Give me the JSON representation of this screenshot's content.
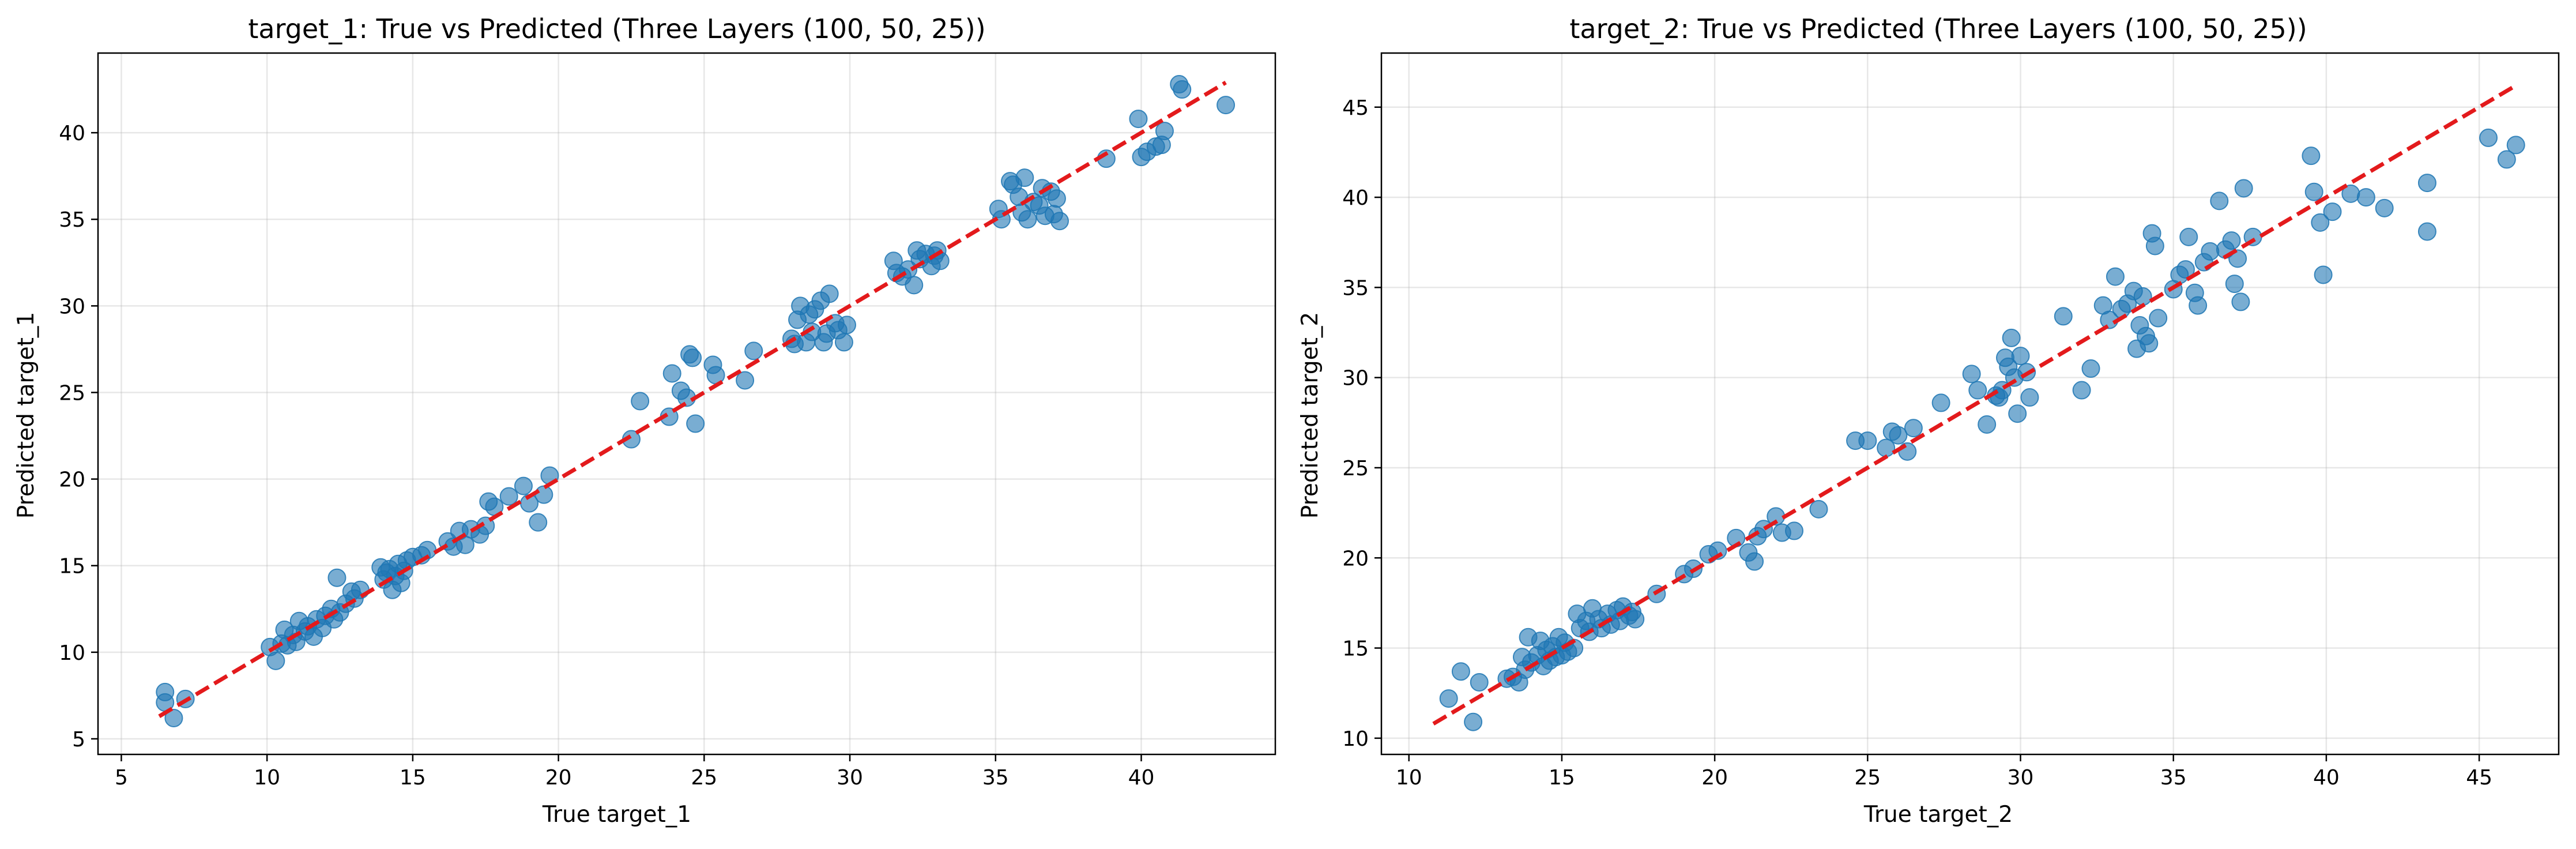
{
  "chart_data": [
    {
      "type": "scatter",
      "title": "target_1: True vs Predicted (Three Layers (100, 50, 25))",
      "xlabel": "True target_1",
      "ylabel": "Predicted target_1",
      "xlim": [
        4.2,
        44.6
      ],
      "ylim": [
        4.1,
        44.6
      ],
      "xticks": [
        5,
        10,
        15,
        20,
        25,
        30,
        35,
        40
      ],
      "yticks": [
        5,
        10,
        15,
        20,
        25,
        30,
        35,
        40
      ],
      "grid": true,
      "point_color": "#1f77b4",
      "reference_line": {
        "from": [
          6.3,
          6.3
        ],
        "to": [
          42.9,
          42.9
        ],
        "color": "#e31a1c",
        "style": "dashed"
      },
      "points": [
        [
          6.5,
          7.7
        ],
        [
          6.5,
          7.1
        ],
        [
          6.8,
          6.2
        ],
        [
          7.2,
          7.3
        ],
        [
          10.1,
          10.3
        ],
        [
          10.3,
          9.5
        ],
        [
          10.5,
          10.5
        ],
        [
          10.6,
          11.3
        ],
        [
          10.7,
          10.4
        ],
        [
          10.9,
          11.0
        ],
        [
          11.0,
          10.6
        ],
        [
          11.1,
          11.8
        ],
        [
          11.3,
          11.2
        ],
        [
          11.4,
          11.5
        ],
        [
          11.6,
          10.9
        ],
        [
          11.7,
          11.9
        ],
        [
          11.9,
          11.4
        ],
        [
          12.0,
          12.1
        ],
        [
          12.2,
          12.5
        ],
        [
          12.3,
          11.9
        ],
        [
          12.4,
          14.3
        ],
        [
          12.5,
          12.3
        ],
        [
          12.7,
          12.8
        ],
        [
          12.9,
          13.5
        ],
        [
          13.0,
          13.1
        ],
        [
          13.2,
          13.6
        ],
        [
          13.9,
          14.9
        ],
        [
          14.0,
          14.2
        ],
        [
          14.1,
          14.6
        ],
        [
          14.2,
          14.8
        ],
        [
          14.3,
          13.6
        ],
        [
          14.4,
          14.4
        ],
        [
          14.5,
          15.1
        ],
        [
          14.6,
          14.0
        ],
        [
          14.7,
          14.7
        ],
        [
          14.8,
          15.3
        ],
        [
          15.0,
          15.5
        ],
        [
          15.3,
          15.6
        ],
        [
          15.5,
          15.9
        ],
        [
          16.2,
          16.4
        ],
        [
          16.4,
          16.1
        ],
        [
          16.6,
          17.0
        ],
        [
          16.8,
          16.2
        ],
        [
          17.0,
          17.1
        ],
        [
          17.3,
          16.8
        ],
        [
          17.5,
          17.3
        ],
        [
          17.6,
          18.7
        ],
        [
          17.8,
          18.4
        ],
        [
          18.3,
          19.0
        ],
        [
          18.8,
          19.6
        ],
        [
          19.0,
          18.6
        ],
        [
          19.3,
          17.5
        ],
        [
          19.5,
          19.1
        ],
        [
          19.7,
          20.2
        ],
        [
          22.5,
          22.3
        ],
        [
          22.8,
          24.5
        ],
        [
          23.8,
          23.6
        ],
        [
          23.9,
          26.1
        ],
        [
          24.2,
          25.1
        ],
        [
          24.4,
          24.7
        ],
        [
          24.5,
          27.2
        ],
        [
          24.6,
          27.0
        ],
        [
          24.7,
          23.2
        ],
        [
          25.3,
          26.6
        ],
        [
          25.4,
          26.0
        ],
        [
          26.4,
          25.7
        ],
        [
          26.7,
          27.4
        ],
        [
          28.0,
          28.1
        ],
        [
          28.1,
          27.8
        ],
        [
          28.2,
          29.2
        ],
        [
          28.3,
          30.0
        ],
        [
          28.5,
          27.9
        ],
        [
          28.6,
          29.5
        ],
        [
          28.7,
          28.5
        ],
        [
          28.8,
          29.8
        ],
        [
          29.0,
          30.3
        ],
        [
          29.1,
          27.9
        ],
        [
          29.2,
          28.4
        ],
        [
          29.3,
          30.7
        ],
        [
          29.5,
          29.0
        ],
        [
          29.6,
          28.6
        ],
        [
          29.8,
          27.9
        ],
        [
          29.9,
          28.9
        ],
        [
          31.5,
          32.6
        ],
        [
          31.6,
          31.9
        ],
        [
          31.8,
          31.7
        ],
        [
          32.0,
          32.1
        ],
        [
          32.2,
          31.2
        ],
        [
          32.3,
          33.2
        ],
        [
          32.4,
          32.7
        ],
        [
          32.6,
          33.0
        ],
        [
          32.8,
          32.3
        ],
        [
          32.9,
          32.9
        ],
        [
          33.0,
          33.2
        ],
        [
          33.1,
          32.6
        ],
        [
          35.1,
          35.6
        ],
        [
          35.2,
          35.0
        ],
        [
          35.5,
          37.2
        ],
        [
          35.6,
          37.0
        ],
        [
          35.8,
          36.3
        ],
        [
          35.9,
          35.4
        ],
        [
          36.0,
          37.4
        ],
        [
          36.1,
          35.0
        ],
        [
          36.3,
          36.0
        ],
        [
          36.5,
          35.8
        ],
        [
          36.6,
          36.8
        ],
        [
          36.7,
          35.2
        ],
        [
          36.9,
          36.6
        ],
        [
          37.0,
          35.3
        ],
        [
          37.1,
          36.2
        ],
        [
          37.2,
          34.9
        ],
        [
          38.8,
          38.5
        ],
        [
          39.9,
          40.8
        ],
        [
          40.0,
          38.6
        ],
        [
          40.2,
          38.9
        ],
        [
          40.5,
          39.2
        ],
        [
          40.7,
          39.3
        ],
        [
          40.8,
          40.1
        ],
        [
          41.3,
          42.8
        ],
        [
          41.4,
          42.5
        ],
        [
          42.9,
          41.6
        ]
      ]
    },
    {
      "type": "scatter",
      "title": "target_2: True vs Predicted (Three Layers (100, 50, 25))",
      "xlabel": "True target_2",
      "ylabel": "Predicted target_2",
      "xlim": [
        9.1,
        47.6
      ],
      "ylim": [
        9.1,
        48.0
      ],
      "xticks": [
        10,
        15,
        20,
        25,
        30,
        35,
        40,
        45
      ],
      "yticks": [
        10,
        15,
        20,
        25,
        30,
        35,
        40,
        45
      ],
      "grid": true,
      "point_color": "#1f77b4",
      "reference_line": {
        "from": [
          10.8,
          10.8
        ],
        "to": [
          46.2,
          46.2
        ],
        "color": "#e31a1c",
        "style": "dashed"
      },
      "points": [
        [
          11.3,
          12.2
        ],
        [
          11.7,
          13.7
        ],
        [
          12.1,
          10.9
        ],
        [
          12.3,
          13.1
        ],
        [
          13.2,
          13.3
        ],
        [
          13.4,
          13.4
        ],
        [
          13.6,
          13.1
        ],
        [
          13.7,
          14.5
        ],
        [
          13.8,
          13.8
        ],
        [
          13.9,
          15.6
        ],
        [
          14.0,
          14.2
        ],
        [
          14.2,
          14.6
        ],
        [
          14.3,
          15.4
        ],
        [
          14.4,
          14.0
        ],
        [
          14.5,
          14.9
        ],
        [
          14.6,
          14.3
        ],
        [
          14.7,
          15.1
        ],
        [
          14.8,
          14.5
        ],
        [
          14.9,
          15.6
        ],
        [
          15.0,
          14.6
        ],
        [
          15.1,
          15.3
        ],
        [
          15.2,
          14.8
        ],
        [
          15.4,
          15.0
        ],
        [
          15.5,
          16.9
        ],
        [
          15.6,
          16.1
        ],
        [
          15.8,
          16.5
        ],
        [
          15.9,
          15.9
        ],
        [
          16.0,
          17.2
        ],
        [
          16.2,
          16.6
        ],
        [
          16.3,
          16.1
        ],
        [
          16.5,
          16.9
        ],
        [
          16.6,
          16.3
        ],
        [
          16.8,
          17.1
        ],
        [
          16.9,
          16.5
        ],
        [
          17.0,
          17.3
        ],
        [
          17.2,
          16.8
        ],
        [
          17.3,
          17.0
        ],
        [
          17.4,
          16.6
        ],
        [
          18.1,
          18.0
        ],
        [
          19.0,
          19.1
        ],
        [
          19.3,
          19.4
        ],
        [
          19.8,
          20.2
        ],
        [
          20.1,
          20.4
        ],
        [
          20.7,
          21.1
        ],
        [
          21.1,
          20.3
        ],
        [
          21.3,
          19.8
        ],
        [
          21.4,
          21.2
        ],
        [
          21.6,
          21.6
        ],
        [
          22.0,
          22.3
        ],
        [
          22.2,
          21.4
        ],
        [
          22.6,
          21.5
        ],
        [
          23.4,
          22.7
        ],
        [
          24.6,
          26.5
        ],
        [
          25.0,
          26.5
        ],
        [
          25.6,
          26.1
        ],
        [
          25.8,
          27.0
        ],
        [
          26.0,
          26.8
        ],
        [
          26.3,
          25.9
        ],
        [
          26.5,
          27.2
        ],
        [
          27.4,
          28.6
        ],
        [
          28.4,
          30.2
        ],
        [
          28.6,
          29.3
        ],
        [
          28.9,
          27.4
        ],
        [
          29.2,
          29.0
        ],
        [
          29.3,
          28.9
        ],
        [
          29.4,
          29.3
        ],
        [
          29.5,
          31.1
        ],
        [
          29.6,
          30.6
        ],
        [
          29.7,
          32.2
        ],
        [
          29.8,
          30.0
        ],
        [
          29.9,
          28.0
        ],
        [
          30.0,
          31.2
        ],
        [
          30.2,
          30.3
        ],
        [
          30.3,
          28.9
        ],
        [
          31.4,
          33.4
        ],
        [
          32.0,
          29.3
        ],
        [
          32.3,
          30.5
        ],
        [
          32.7,
          34.0
        ],
        [
          32.9,
          33.2
        ],
        [
          33.1,
          35.6
        ],
        [
          33.3,
          33.8
        ],
        [
          33.5,
          34.1
        ],
        [
          33.7,
          34.8
        ],
        [
          33.8,
          31.6
        ],
        [
          33.9,
          32.9
        ],
        [
          34.0,
          34.5
        ],
        [
          34.1,
          32.3
        ],
        [
          34.2,
          31.9
        ],
        [
          34.3,
          38.0
        ],
        [
          34.4,
          37.3
        ],
        [
          34.5,
          33.3
        ],
        [
          35.0,
          34.9
        ],
        [
          35.2,
          35.7
        ],
        [
          35.4,
          36.0
        ],
        [
          35.5,
          37.8
        ],
        [
          35.7,
          34.7
        ],
        [
          35.8,
          34.0
        ],
        [
          36.0,
          36.4
        ],
        [
          36.2,
          37.0
        ],
        [
          36.5,
          39.8
        ],
        [
          36.7,
          37.1
        ],
        [
          36.9,
          37.6
        ],
        [
          37.0,
          35.2
        ],
        [
          37.1,
          36.6
        ],
        [
          37.2,
          34.2
        ],
        [
          37.3,
          40.5
        ],
        [
          37.6,
          37.8
        ],
        [
          39.5,
          42.3
        ],
        [
          39.6,
          40.3
        ],
        [
          39.8,
          38.6
        ],
        [
          39.9,
          35.7
        ],
        [
          40.2,
          39.2
        ],
        [
          40.8,
          40.2
        ],
        [
          41.3,
          40.0
        ],
        [
          41.9,
          39.4
        ],
        [
          43.3,
          40.8
        ],
        [
          43.3,
          38.1
        ],
        [
          45.3,
          43.3
        ],
        [
          45.9,
          42.1
        ],
        [
          46.2,
          42.9
        ]
      ]
    }
  ]
}
